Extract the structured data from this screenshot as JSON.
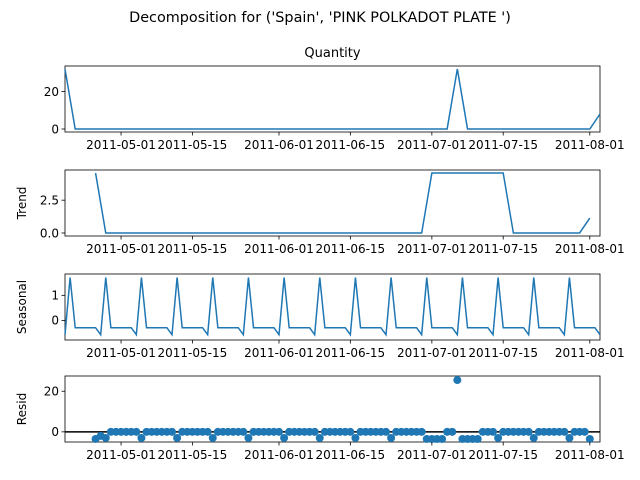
{
  "suptitle": "Decomposition for ('Spain', 'PINK  POLKADOT PLATE ')",
  "series_color": "#1f77b4",
  "zero_line_color": "#000000",
  "x_tick_labels": [
    "2011-05-01",
    "2011-05-15",
    "2011-06-01",
    "2011-06-15",
    "2011-07-01",
    "2011-07-15",
    "2011-08-01"
  ],
  "chart_data": [
    {
      "type": "line",
      "title": "Quantity",
      "ylabel": "",
      "x_start": "2011-04-20",
      "x_end": "2011-08-03",
      "ylim": [
        -1.6,
        33.6
      ],
      "yticks": [
        0,
        20
      ],
      "ytick_labels": [
        "0",
        "20"
      ],
      "points": [
        {
          "x": "2011-04-20",
          "y": 32
        },
        {
          "x": "2011-04-22",
          "y": 0
        },
        {
          "x": "2011-07-04",
          "y": 0
        },
        {
          "x": "2011-07-06",
          "y": 32
        },
        {
          "x": "2011-07-08",
          "y": 0
        },
        {
          "x": "2011-08-01",
          "y": 0
        },
        {
          "x": "2011-08-03",
          "y": 8
        }
      ]
    },
    {
      "type": "line",
      "title": "",
      "ylabel": "Trend",
      "x_start": "2011-04-20",
      "x_end": "2011-08-03",
      "ylim": [
        -0.23,
        4.8
      ],
      "yticks": [
        0,
        2.5
      ],
      "ytick_labels": [
        "0.0",
        "2.5"
      ],
      "points": [
        {
          "x": "2011-04-26",
          "y": 4.57
        },
        {
          "x": "2011-04-28",
          "y": 0
        },
        {
          "x": "2011-06-29",
          "y": 0
        },
        {
          "x": "2011-07-01",
          "y": 4.57
        },
        {
          "x": "2011-07-15",
          "y": 4.57
        },
        {
          "x": "2011-07-17",
          "y": 0
        },
        {
          "x": "2011-07-30",
          "y": 0
        },
        {
          "x": "2011-08-01",
          "y": 1.14
        }
      ]
    },
    {
      "type": "line",
      "title": "",
      "ylabel": "Seasonal",
      "x_start": "2011-04-20",
      "x_end": "2011-08-03",
      "ylim": [
        -0.78,
        1.85
      ],
      "yticks": [
        0,
        1
      ],
      "ytick_labels": [
        "0",
        "1"
      ],
      "pattern_start": "2011-04-20",
      "pattern_end": "2011-08-03",
      "period_days": 7,
      "peak_anchor": "2011-04-28",
      "weekly_pattern": [
        -0.29,
        -0.29,
        -0.29,
        -0.29,
        -0.29,
        -0.57,
        1.71
      ]
    },
    {
      "type": "scatter",
      "title": "",
      "ylabel": "Resid",
      "x_start": "2011-04-20",
      "x_end": "2011-08-03",
      "ylim": [
        -5,
        27.5
      ],
      "yticks": [
        0,
        20
      ],
      "ytick_labels": [
        "0",
        "20"
      ],
      "baseline": 0,
      "default_y": 0,
      "first_point": "2011-04-26",
      "last_point": "2011-08-01",
      "low_offset": -3.0,
      "overrides": [
        {
          "x": "2011-04-26",
          "y": -3.5
        },
        {
          "x": "2011-04-27",
          "y": -2.0
        },
        {
          "x": "2011-06-30",
          "y": -3.5
        },
        {
          "x": "2011-07-01",
          "y": -3.5
        },
        {
          "x": "2011-07-02",
          "y": -3.5
        },
        {
          "x": "2011-07-03",
          "y": -3.5
        },
        {
          "x": "2011-07-04",
          "y": 0
        },
        {
          "x": "2011-07-05",
          "y": 0
        },
        {
          "x": "2011-07-06",
          "y": 25.5
        },
        {
          "x": "2011-07-07",
          "y": -3.5
        },
        {
          "x": "2011-07-08",
          "y": -3.5
        },
        {
          "x": "2011-07-09",
          "y": -3.5
        },
        {
          "x": "2011-07-10",
          "y": -3.5
        },
        {
          "x": "2011-08-01",
          "y": -3.5
        }
      ]
    }
  ]
}
